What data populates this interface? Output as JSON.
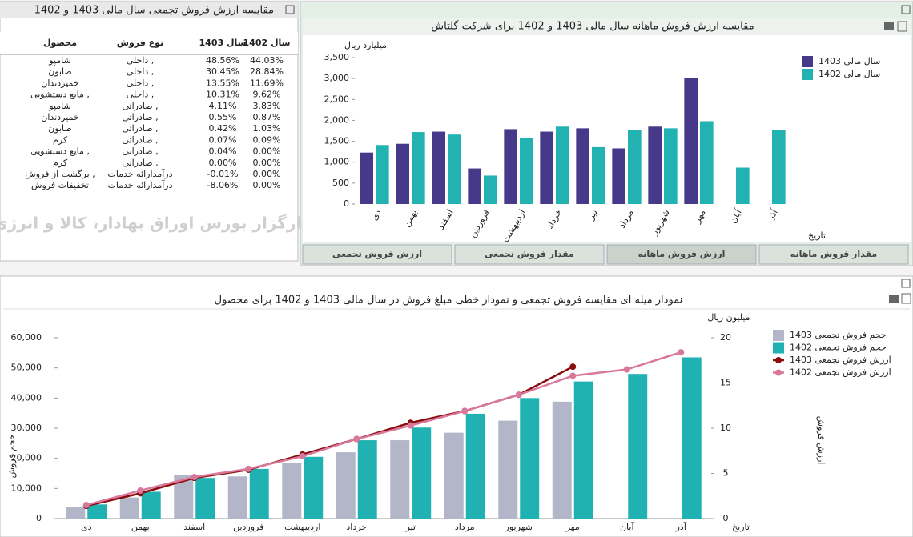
{
  "table_panel": {
    "title": "مقایسه ارزش فروش تجمعی سال مالی 1403 و 1402",
    "table": {
      "header": [
        "محصول",
        "نوع فروش",
        "سال 1403",
        "سال 1402"
      ],
      "rows": [
        [
          "شامپو",
          "داخلی ,",
          "48.56%",
          "44.03%"
        ],
        [
          "صابون",
          "داخلی ,",
          "30.45%",
          "28.84%"
        ],
        [
          "خمیردندان",
          "داخلی ,",
          "13.55%",
          "11.69%"
        ],
        [
          "مایع دستشویی ,",
          "داخلی ,",
          "10.31%",
          "9.62%"
        ],
        [
          "شامپو",
          "صادراتی ,",
          "4.11%",
          "3.83%"
        ],
        [
          "خمیردندان",
          "صادراتی ,",
          "0.55%",
          "0.87%"
        ],
        [
          "صابون",
          "صادراتی ,",
          "0.42%",
          "1.03%"
        ],
        [
          "کرم",
          "صادراتی ,",
          "0.07%",
          "0.09%"
        ],
        [
          "مایع دستشویی ,",
          "صادراتی ,",
          "0.04%",
          "0.00%"
        ],
        [
          "کرم",
          "صادراتی ,",
          "0.00%",
          "0.00%"
        ],
        [
          "برگشت از فروش ,",
          "درآمدارائه خدمات",
          "-0.01%",
          "0.00%"
        ],
        [
          "تخفیفات فروش",
          "درآمدارائه خدمات",
          "-8.06%",
          "0.00%"
        ]
      ]
    }
  },
  "watermark": "کارگزار بورس اوراق بهادار، کالا و انرژی",
  "tabs": [
    "ارزش فروش تجمعی",
    "مقدار فروش تجمعی",
    "ارزش فروش ماهانه",
    "مقدار فروش ماهانه"
  ],
  "chart_data": [
    {
      "type": "bar",
      "title": "مقایسه ارزش فروش ماهانه سال مالی 1403 و 1402 برای شرکت گلتاش",
      "ylabel": "میلیارد ریال",
      "xlabel": "تاریخ",
      "categories": [
        "دی",
        "بهمن",
        "اسفند",
        "فروردین",
        "اردیبهشت",
        "خرداد",
        "تیر",
        "مرداد",
        "شهریور",
        "مهر",
        "آبان",
        "آذر"
      ],
      "series": [
        {
          "name": "سال مالی 1403",
          "color": "#46398a",
          "values": [
            1230,
            1440,
            1730,
            850,
            1790,
            1730,
            1810,
            1330,
            1850,
            3020,
            null,
            null
          ]
        },
        {
          "name": "سال مالی 1402",
          "color": "#22b2b2",
          "values": [
            1410,
            1720,
            1660,
            680,
            1580,
            1850,
            1360,
            1760,
            1810,
            1980,
            870,
            1770
          ]
        }
      ],
      "ylim": [
        0,
        3500
      ],
      "yticks": [
        0,
        500,
        {
          "value": 1000,
          "label": "1,000"
        },
        {
          "value": 1500,
          "label": "1,500"
        },
        {
          "value": 2000,
          "label": "2,000"
        },
        {
          "value": 2500,
          "label": "2,500"
        },
        {
          "value": 3000,
          "label": "3,000"
        },
        {
          "value": 3500,
          "label": "3,500"
        }
      ],
      "legend": "right"
    },
    {
      "type": "combo",
      "title": "نمودار میله ای مقایسه فروش تجمعی و نمودار خطی مبلغ فروش در سال مالی 1403 و 1402 برای محصول",
      "ylabel": "حجم فروش",
      "y2label": "ارزش فروش",
      "y2unit": "میلیون ریال",
      "xlabel": "تاریخ",
      "categories": [
        "دی",
        "بهمن",
        "اسفند",
        "فروردین",
        "اردیبهشت",
        "خرداد",
        "تیر",
        "مرداد",
        "شهریور",
        "مهر",
        "آبان",
        "آذر"
      ],
      "series": [
        {
          "name": "حجم فروش تجمعی 1403",
          "kind": "bar",
          "color": "#b3b5c9",
          "values": [
            3700,
            7000,
            14500,
            14000,
            18500,
            22000,
            26000,
            28500,
            32500,
            38800,
            null,
            null
          ]
        },
        {
          "name": "حجم فروش تجمعی 1402",
          "kind": "bar",
          "color": "#20b2b3",
          "values": [
            4700,
            8900,
            13500,
            16500,
            20500,
            26000,
            30200,
            34800,
            40000,
            45500,
            48000,
            53500
          ]
        },
        {
          "name": "ارزش فروش تجمعی 1403",
          "kind": "line",
          "axis": "y2",
          "color": "#8b0e0e",
          "values": [
            1.4,
            2.8,
            4.5,
            5.4,
            7.1,
            8.8,
            10.6,
            11.9,
            13.7,
            16.8,
            null,
            null
          ]
        },
        {
          "name": "ارزش فروش تجمعی 1402",
          "kind": "line",
          "axis": "y2",
          "color": "#d8789b",
          "values": [
            1.5,
            3.1,
            4.6,
            5.5,
            6.9,
            8.8,
            10.3,
            11.9,
            13.7,
            15.8,
            16.5,
            18.4
          ]
        }
      ],
      "ylim": [
        0,
        60000
      ],
      "yticks": [
        0,
        {
          "value": 10000,
          "label": "10,000"
        },
        {
          "value": 20000,
          "label": "20,000"
        },
        {
          "value": 30000,
          "label": "30,000"
        },
        {
          "value": 40000,
          "label": "40,000"
        },
        {
          "value": 50000,
          "label": "50,000"
        },
        {
          "value": 60000,
          "label": "60,000"
        }
      ],
      "y2lim": [
        0,
        20
      ],
      "y2ticks": [
        0,
        5,
        10,
        15,
        20
      ],
      "legend": "right"
    }
  ]
}
